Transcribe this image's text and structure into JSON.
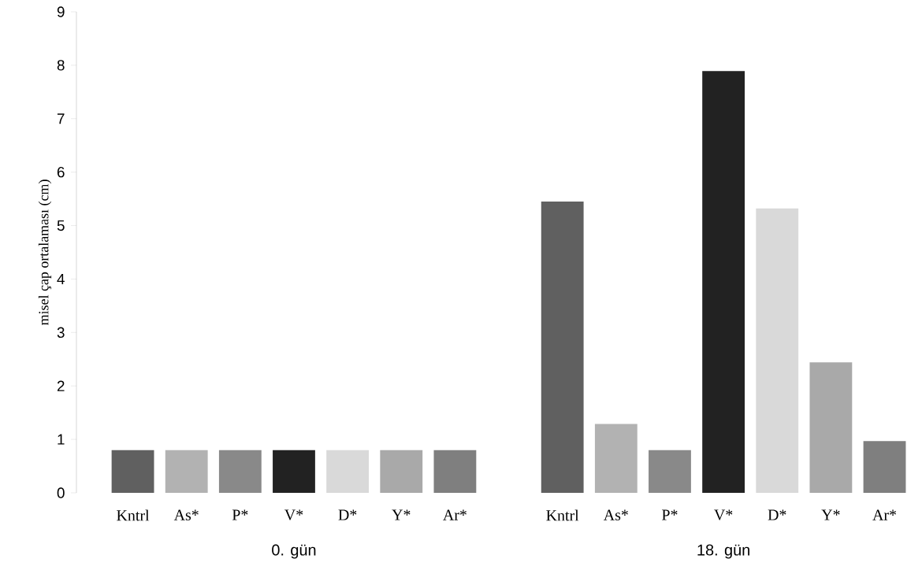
{
  "chart_data": {
    "type": "bar",
    "ylabel": "misel çap ortalaması (cm)",
    "categories": [
      "Kntrl",
      "As*",
      "P*",
      "V*",
      "D*",
      "Y*",
      "Ar*",
      null,
      "Kntrl",
      "As*",
      "P*",
      "V*",
      "D*",
      "Y*",
      "Ar*"
    ],
    "values": [
      0.8,
      0.8,
      0.8,
      0.8,
      0.8,
      0.8,
      0.8,
      null,
      5.45,
      1.29,
      0.8,
      7.89,
      5.32,
      2.44,
      0.97
    ],
    "colors": [
      "#606060",
      "#b2b2b2",
      "#898989",
      "#222222",
      "#d9d9d9",
      "#a9a9a9",
      "#7f7f7f",
      null,
      "#606060",
      "#b2b2b2",
      "#898989",
      "#222222",
      "#d9d9d9",
      "#a9a9a9",
      "#7f7f7f"
    ],
    "ylim": [
      0,
      9
    ],
    "yticks": [
      0,
      1,
      2,
      3,
      4,
      5,
      6,
      7,
      8,
      9
    ],
    "annotations": [
      "0. gün",
      "18. gün"
    ]
  }
}
